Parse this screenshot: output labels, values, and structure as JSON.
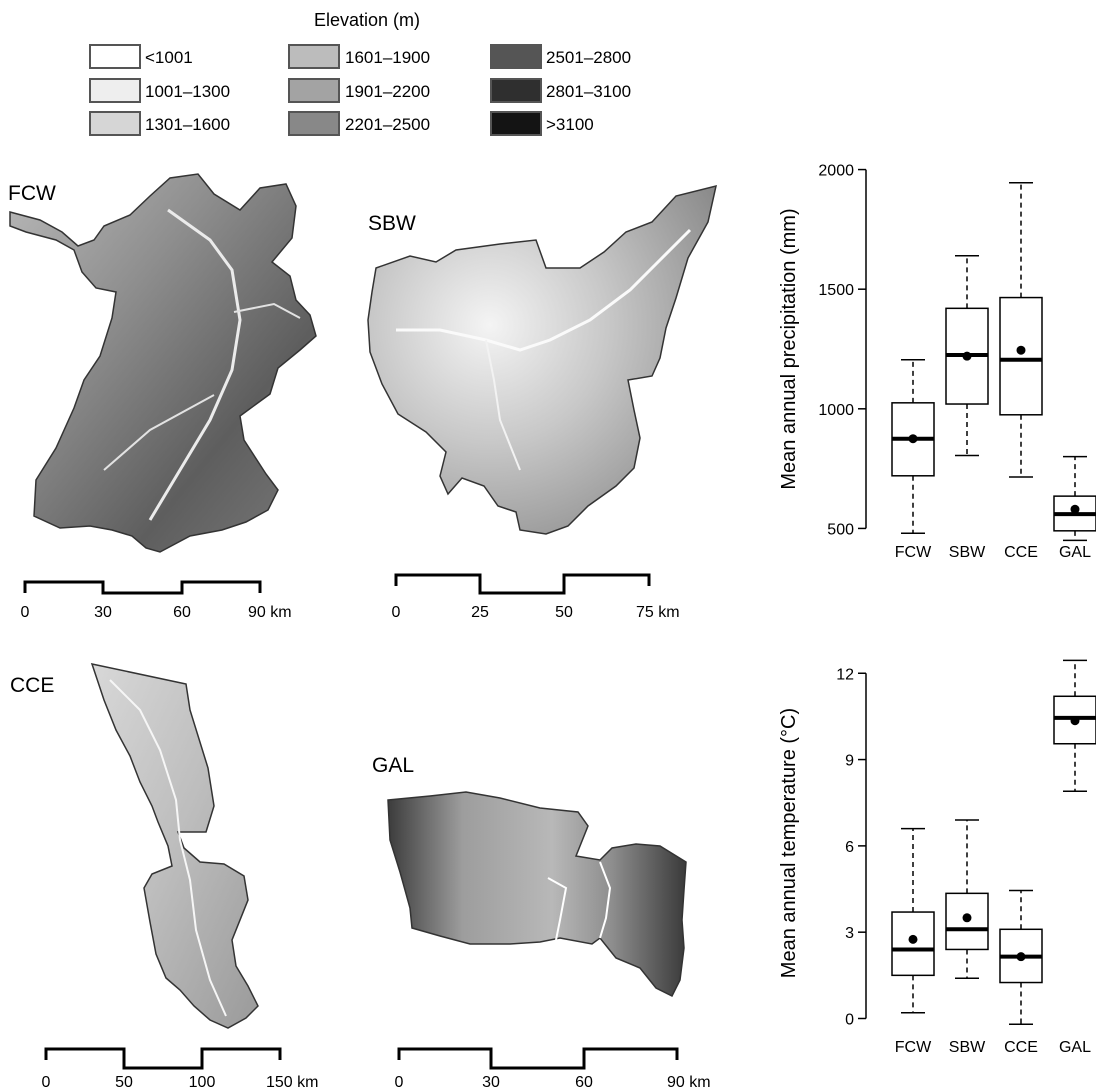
{
  "legend": {
    "title": "Elevation (m)",
    "items": [
      {
        "label": "<1001",
        "color": "#ffffff"
      },
      {
        "label": "1001–1300",
        "color": "#eeeeee"
      },
      {
        "label": "1301–1600",
        "color": "#d6d6d6"
      },
      {
        "label": "1601–1900",
        "color": "#bcbcbc"
      },
      {
        "label": "1901–2200",
        "color": "#a3a3a3"
      },
      {
        "label": "2201–2500",
        "color": "#888888"
      },
      {
        "label": "2501–2800",
        "color": "#555555"
      },
      {
        "label": "2801–3100",
        "color": "#2f2f2f"
      },
      {
        "label": ">3100",
        "color": "#141414"
      }
    ]
  },
  "maps": [
    {
      "id": "FCW",
      "label": "FCW",
      "scale_ticks": [
        "0",
        "30",
        "60",
        "90 km"
      ]
    },
    {
      "id": "SBW",
      "label": "SBW",
      "scale_ticks": [
        "0",
        "25",
        "50",
        "75 km"
      ]
    },
    {
      "id": "CCE",
      "label": "CCE",
      "scale_ticks": [
        "0",
        "50",
        "100",
        "150 km"
      ]
    },
    {
      "id": "GAL",
      "label": "GAL",
      "scale_ticks": [
        "0",
        "30",
        "60",
        "90 km"
      ]
    }
  ],
  "chart_data": [
    {
      "type": "box",
      "ylabel": "Mean annual precipitation (mm)",
      "categories": [
        "FCW",
        "SBW",
        "CCE",
        "GAL"
      ],
      "ylim": [
        460,
        2040
      ],
      "yticks": [
        500,
        1000,
        1500,
        2000
      ],
      "boxes": [
        {
          "name": "FCW",
          "min": 480,
          "q1": 720,
          "median": 875,
          "q3": 1025,
          "max": 1205,
          "mean": 875
        },
        {
          "name": "SBW",
          "min": 805,
          "q1": 1020,
          "median": 1225,
          "q3": 1420,
          "max": 1640,
          "mean": 1220
        },
        {
          "name": "CCE",
          "min": 715,
          "q1": 975,
          "median": 1205,
          "q3": 1465,
          "max": 1945,
          "mean": 1245
        },
        {
          "name": "GAL",
          "min": 450,
          "q1": 490,
          "median": 560,
          "q3": 635,
          "max": 800,
          "mean": 580
        }
      ]
    },
    {
      "type": "box",
      "ylabel": "Mean annual temperature (°C)",
      "categories": [
        "FCW",
        "SBW",
        "CCE",
        "GAL"
      ],
      "ylim": [
        -0.4,
        12.6
      ],
      "yticks": [
        0,
        3,
        6,
        9,
        12
      ],
      "boxes": [
        {
          "name": "FCW",
          "min": 0.2,
          "q1": 1.5,
          "median": 2.4,
          "q3": 3.7,
          "max": 6.6,
          "mean": 2.75
        },
        {
          "name": "SBW",
          "min": 1.4,
          "q1": 2.4,
          "median": 3.1,
          "q3": 4.35,
          "max": 6.9,
          "mean": 3.5
        },
        {
          "name": "CCE",
          "min": -0.2,
          "q1": 1.25,
          "median": 2.15,
          "q3": 3.1,
          "max": 4.45,
          "mean": 2.15
        },
        {
          "name": "GAL",
          "min": 7.9,
          "q1": 9.55,
          "median": 10.45,
          "q3": 11.2,
          "max": 12.45,
          "mean": 10.35
        }
      ]
    }
  ]
}
